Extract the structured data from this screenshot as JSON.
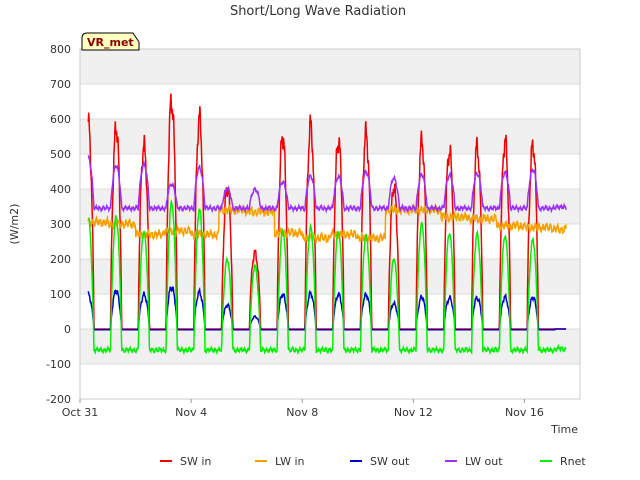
{
  "chart_data": {
    "type": "line",
    "title": "Short/Long Wave Radiation",
    "xlabel": "Time",
    "ylabel": "(W/m2)",
    "badge": "VR_met",
    "ylim": [
      -200,
      800
    ],
    "yticks": [
      -200,
      -100,
      0,
      100,
      200,
      300,
      400,
      500,
      600,
      700,
      800
    ],
    "xlim_days": [
      0,
      18
    ],
    "xticks": [
      {
        "day": 0,
        "label": "Oct 31"
      },
      {
        "day": 4,
        "label": "Nov 4"
      },
      {
        "day": 8,
        "label": "Nov 8"
      },
      {
        "day": 12,
        "label": "Nov 12"
      },
      {
        "day": 16,
        "label": "Nov 16"
      }
    ],
    "legend_position": "bottom-center",
    "grid": true,
    "days": [
      0.3,
      1.3,
      2.3,
      3.3,
      4.3,
      5.3,
      6.3,
      7.3,
      8.3,
      9.3,
      10.3,
      11.3,
      12.3,
      13.3,
      14.3,
      15.3,
      16.3,
      17.3
    ],
    "series": [
      {
        "name": "SW in",
        "color": "#ee0000",
        "values": [
          630,
          620,
          575,
          710,
          645,
          440,
          240,
          595,
          625,
          590,
          610,
          435,
          580,
          560,
          565,
          575,
          575,
          0
        ]
      },
      {
        "name": "LW in",
        "color": "#f5a000",
        "values": [
          305,
          300,
          270,
          280,
          270,
          340,
          335,
          275,
          260,
          270,
          260,
          340,
          340,
          320,
          315,
          295,
          290,
          285
        ]
      },
      {
        "name": "SW out",
        "color": "#0000cc",
        "values": [
          110,
          120,
          110,
          135,
          115,
          75,
          40,
          110,
          110,
          110,
          110,
          80,
          100,
          100,
          100,
          100,
          100,
          0
        ]
      },
      {
        "name": "LW out",
        "color": "#9b30ff",
        "values": [
          490,
          465,
          470,
          415,
          460,
          400,
          400,
          420,
          435,
          435,
          450,
          430,
          440,
          440,
          445,
          445,
          455,
          350
        ]
      },
      {
        "name": "Rnet",
        "color": "#00ee00",
        "values": [
          315,
          320,
          280,
          360,
          340,
          200,
          180,
          280,
          290,
          280,
          265,
          200,
          300,
          275,
          270,
          265,
          255,
          -55
        ]
      }
    ]
  }
}
